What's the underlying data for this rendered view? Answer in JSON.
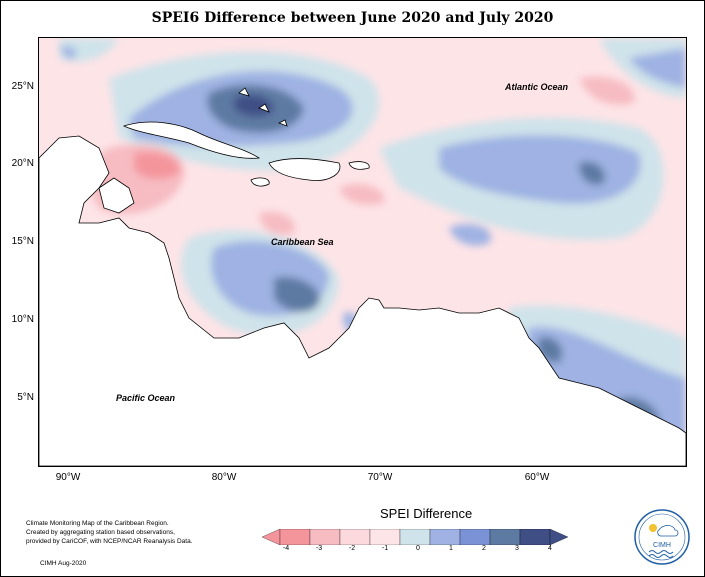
{
  "title": "SPEI6 Difference between June 2020 and July 2020",
  "axes": {
    "y_ticks": [
      "25°N",
      "20°N",
      "15°N",
      "10°N",
      "5°N"
    ],
    "x_ticks": [
      "90°W",
      "80°W",
      "70°W",
      "60°W"
    ]
  },
  "labels": {
    "atlantic": "Atlantic Ocean",
    "caribbean": "Caribbean Sea",
    "pacific": "Pacific Ocean"
  },
  "credit": {
    "line1": "Climate Monitoring Map of the Caribbean Region.",
    "line2": "Created by aggregating station based observations,",
    "line3": "provided by CariCOF, with NCEP/NCAR Reanalysis Data.",
    "footer": "CIMH Aug-2020"
  },
  "legend": {
    "title": "SPEI Difference",
    "tick_labels": [
      "-4",
      "-3",
      "-2",
      "-1",
      "0",
      "1",
      "2",
      "3",
      "4"
    ],
    "colors": [
      "#f4959c",
      "#f6bcc2",
      "#fbd9dd",
      "#fde4e7",
      "#cfe3ea",
      "#9fb2e3",
      "#7b92d6",
      "#5d7aa3",
      "#3f4f86"
    ]
  },
  "logo": {
    "text": "CIMH"
  }
}
